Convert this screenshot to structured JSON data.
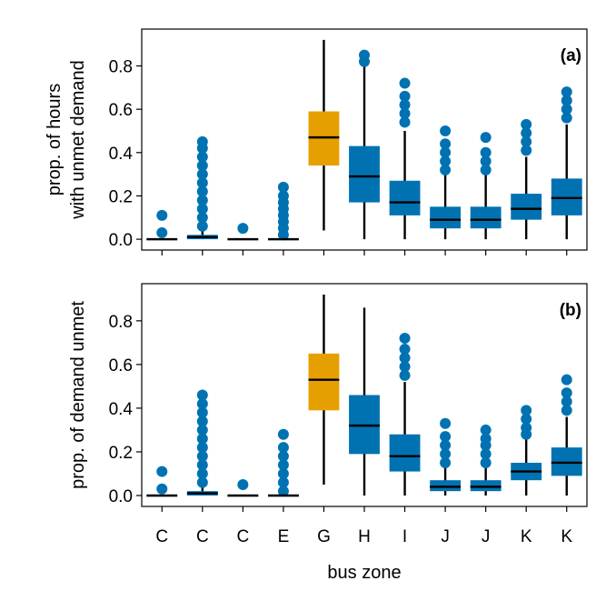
{
  "chart_data": [
    {
      "type": "box",
      "panel_label": "(a)",
      "xlabel": "",
      "ylabel_lines": [
        "prop. of hours",
        "with unmet demand"
      ],
      "ylim": [
        -0.05,
        0.97
      ],
      "yticks": [
        0.0,
        0.2,
        0.4,
        0.6,
        0.8
      ],
      "ytick_labels": [
        "0.0",
        "0.2",
        "0.4",
        "0.6",
        "0.8"
      ],
      "grid": false,
      "categories": [
        "C",
        "C",
        "C",
        "E",
        "G",
        "H",
        "I",
        "J",
        "J",
        "K",
        "K"
      ],
      "boxes": [
        {
          "label": "C",
          "color": "#0072B2",
          "q1": 0.0,
          "median": 0.0,
          "q3": 0.0,
          "whisker_low": 0.0,
          "whisker_high": 0.0,
          "outliers": [
            0.03,
            0.11
          ]
        },
        {
          "label": "C",
          "color": "#0072B2",
          "q1": 0.0,
          "median": 0.01,
          "q3": 0.02,
          "whisker_low": 0.0,
          "whisker_high": 0.04,
          "outliers": [
            0.06,
            0.1,
            0.14,
            0.18,
            0.22,
            0.26,
            0.3,
            0.34,
            0.38,
            0.42,
            0.45
          ]
        },
        {
          "label": "C",
          "color": "#0072B2",
          "q1": 0.0,
          "median": 0.0,
          "q3": 0.0,
          "whisker_low": 0.0,
          "whisker_high": 0.0,
          "outliers": [
            0.05
          ]
        },
        {
          "label": "E",
          "color": "#0072B2",
          "q1": 0.0,
          "median": 0.0,
          "q3": 0.0,
          "whisker_low": 0.0,
          "whisker_high": 0.0,
          "outliers": [
            0.02,
            0.05,
            0.08,
            0.11,
            0.14,
            0.17,
            0.2,
            0.24
          ]
        },
        {
          "label": "G",
          "color": "#E69F00",
          "q1": 0.34,
          "median": 0.47,
          "q3": 0.59,
          "whisker_low": 0.04,
          "whisker_high": 0.92,
          "outliers": []
        },
        {
          "label": "H",
          "color": "#0072B2",
          "q1": 0.17,
          "median": 0.29,
          "q3": 0.43,
          "whisker_low": 0.0,
          "whisker_high": 0.8,
          "outliers": [
            0.82,
            0.85
          ]
        },
        {
          "label": "I",
          "color": "#0072B2",
          "q1": 0.11,
          "median": 0.17,
          "q3": 0.27,
          "whisker_low": 0.0,
          "whisker_high": 0.5,
          "outliers": [
            0.54,
            0.58,
            0.62,
            0.66,
            0.72
          ]
        },
        {
          "label": "J",
          "color": "#0072B2",
          "q1": 0.05,
          "median": 0.09,
          "q3": 0.15,
          "whisker_low": 0.0,
          "whisker_high": 0.3,
          "outliers": [
            0.32,
            0.36,
            0.4,
            0.44,
            0.5
          ]
        },
        {
          "label": "J",
          "color": "#0072B2",
          "q1": 0.05,
          "median": 0.09,
          "q3": 0.15,
          "whisker_low": 0.0,
          "whisker_high": 0.3,
          "outliers": [
            0.32,
            0.36,
            0.4,
            0.47
          ]
        },
        {
          "label": "K",
          "color": "#0072B2",
          "q1": 0.09,
          "median": 0.14,
          "q3": 0.21,
          "whisker_low": 0.0,
          "whisker_high": 0.38,
          "outliers": [
            0.41,
            0.45,
            0.49,
            0.53
          ]
        },
        {
          "label": "K",
          "color": "#0072B2",
          "q1": 0.11,
          "median": 0.19,
          "q3": 0.28,
          "whisker_low": 0.0,
          "whisker_high": 0.53,
          "outliers": [
            0.56,
            0.6,
            0.64,
            0.68
          ]
        }
      ]
    },
    {
      "type": "box",
      "panel_label": "(b)",
      "xlabel": "bus zone",
      "ylabel_lines": [
        "prop. of demand unmet"
      ],
      "ylim": [
        -0.05,
        0.97
      ],
      "yticks": [
        0.0,
        0.2,
        0.4,
        0.6,
        0.8
      ],
      "ytick_labels": [
        "0.0",
        "0.2",
        "0.4",
        "0.6",
        "0.8"
      ],
      "grid": false,
      "categories": [
        "C",
        "C",
        "C",
        "E",
        "G",
        "H",
        "I",
        "J",
        "J",
        "K",
        "K"
      ],
      "boxes": [
        {
          "label": "C",
          "color": "#0072B2",
          "q1": 0.0,
          "median": 0.0,
          "q3": 0.0,
          "whisker_low": 0.0,
          "whisker_high": 0.0,
          "outliers": [
            0.03,
            0.11
          ]
        },
        {
          "label": "C",
          "color": "#0072B2",
          "q1": 0.0,
          "median": 0.01,
          "q3": 0.02,
          "whisker_low": 0.0,
          "whisker_high": 0.04,
          "outliers": [
            0.06,
            0.1,
            0.14,
            0.18,
            0.22,
            0.26,
            0.3,
            0.34,
            0.38,
            0.42,
            0.46
          ]
        },
        {
          "label": "C",
          "color": "#0072B2",
          "q1": 0.0,
          "median": 0.0,
          "q3": 0.0,
          "whisker_low": 0.0,
          "whisker_high": 0.0,
          "outliers": [
            0.05
          ]
        },
        {
          "label": "E",
          "color": "#0072B2",
          "q1": 0.0,
          "median": 0.0,
          "q3": 0.0,
          "whisker_low": 0.0,
          "whisker_high": 0.0,
          "outliers": [
            0.02,
            0.06,
            0.1,
            0.14,
            0.18,
            0.22,
            0.28
          ]
        },
        {
          "label": "G",
          "color": "#E69F00",
          "q1": 0.39,
          "median": 0.53,
          "q3": 0.65,
          "whisker_low": 0.05,
          "whisker_high": 0.92,
          "outliers": []
        },
        {
          "label": "H",
          "color": "#0072B2",
          "q1": 0.19,
          "median": 0.32,
          "q3": 0.46,
          "whisker_low": 0.0,
          "whisker_high": 0.86,
          "outliers": []
        },
        {
          "label": "I",
          "color": "#0072B2",
          "q1": 0.11,
          "median": 0.18,
          "q3": 0.28,
          "whisker_low": 0.0,
          "whisker_high": 0.52,
          "outliers": [
            0.55,
            0.59,
            0.63,
            0.67,
            0.72
          ]
        },
        {
          "label": "J",
          "color": "#0072B2",
          "q1": 0.02,
          "median": 0.04,
          "q3": 0.07,
          "whisker_low": 0.0,
          "whisker_high": 0.13,
          "outliers": [
            0.15,
            0.19,
            0.23,
            0.27,
            0.33
          ]
        },
        {
          "label": "J",
          "color": "#0072B2",
          "q1": 0.02,
          "median": 0.04,
          "q3": 0.07,
          "whisker_low": 0.0,
          "whisker_high": 0.13,
          "outliers": [
            0.15,
            0.19,
            0.23,
            0.26,
            0.3
          ]
        },
        {
          "label": "K",
          "color": "#0072B2",
          "q1": 0.07,
          "median": 0.11,
          "q3": 0.15,
          "whisker_low": 0.0,
          "whisker_high": 0.26,
          "outliers": [
            0.28,
            0.31,
            0.35,
            0.39
          ]
        },
        {
          "label": "K",
          "color": "#0072B2",
          "q1": 0.09,
          "median": 0.15,
          "q3": 0.22,
          "whisker_low": 0.0,
          "whisker_high": 0.36,
          "outliers": [
            0.39,
            0.43,
            0.47,
            0.53
          ]
        }
      ]
    }
  ]
}
